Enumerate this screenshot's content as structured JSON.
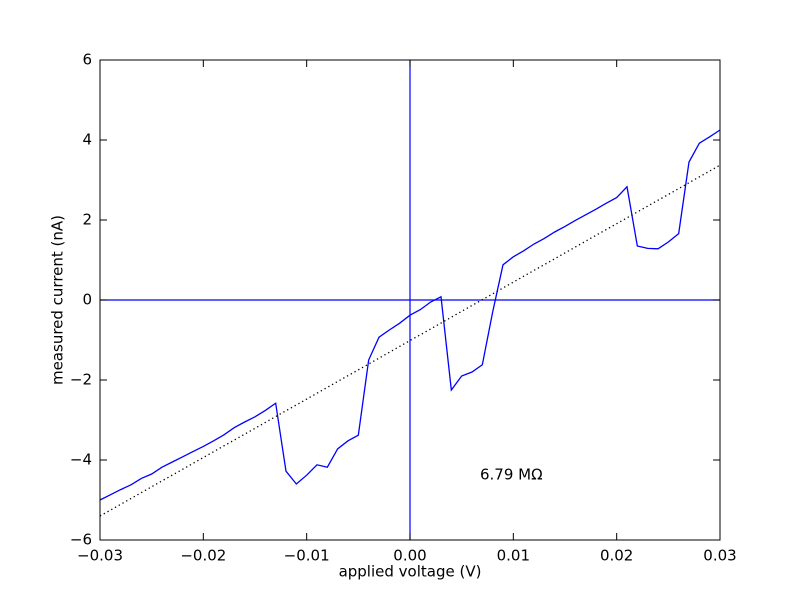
{
  "chart_data": {
    "type": "line",
    "xlabel": "applied voltage (V)",
    "ylabel": "measured current (nA)",
    "annotation": "6.79 MΩ",
    "xlim": [
      -0.03,
      0.03
    ],
    "ylim": [
      -6,
      6
    ],
    "xticks": [
      {
        "value": -0.03,
        "label": "−0.03"
      },
      {
        "value": -0.02,
        "label": "−0.02"
      },
      {
        "value": -0.01,
        "label": "−0.01"
      },
      {
        "value": 0,
        "label": "0.00"
      },
      0.01,
      0.02,
      0.03
    ],
    "yticks": [
      {
        "value": -6,
        "label": "−6"
      },
      {
        "value": -4,
        "label": "−4"
      },
      {
        "value": -2,
        "label": "−2"
      },
      0,
      2,
      4,
      6
    ],
    "grid": false,
    "hlines": [
      0
    ],
    "vlines": [
      0
    ],
    "reference_color": "#0000ff",
    "series": [
      {
        "color": "#0000ff",
        "style": "solid",
        "x": [
          -0.03,
          -0.029,
          -0.028,
          -0.027,
          -0.026,
          -0.025,
          -0.024,
          -0.023,
          -0.022,
          -0.021,
          -0.02,
          -0.019,
          -0.018,
          -0.017,
          -0.016,
          -0.015,
          -0.014,
          -0.013,
          -0.012,
          -0.011,
          -0.01,
          -0.009,
          -0.008,
          -0.007,
          -0.006,
          -0.005,
          -0.004,
          -0.003,
          -0.002,
          -0.001,
          0,
          0.001,
          0.002,
          0.003,
          0.004,
          0.005,
          0.006,
          0.007,
          0.008,
          0.009,
          0.01,
          0.011,
          0.012,
          0.013,
          0.014,
          0.015,
          0.016,
          0.017,
          0.018,
          0.019,
          0.02,
          0.021,
          0.022,
          0.023,
          0.024,
          0.025,
          0.026,
          0.027,
          0.028,
          0.029,
          0.03
        ],
        "values": [
          -5.0,
          -4.87,
          -4.74,
          -4.62,
          -4.46,
          -4.35,
          -4.18,
          -4.05,
          -3.92,
          -3.79,
          -3.66,
          -3.52,
          -3.37,
          -3.19,
          -3.05,
          -2.92,
          -2.76,
          -2.58,
          -4.28,
          -4.6,
          -4.38,
          -4.12,
          -4.18,
          -3.72,
          -3.52,
          -3.38,
          -1.5,
          -0.93,
          -0.75,
          -0.58,
          -0.38,
          -0.24,
          -0.05,
          0.08,
          -2.25,
          -1.9,
          -1.8,
          -1.62,
          -0.3,
          0.88,
          1.08,
          1.23,
          1.4,
          1.54,
          1.7,
          1.84,
          1.99,
          2.13,
          2.27,
          2.42,
          2.56,
          2.83,
          1.35,
          1.29,
          1.28,
          1.45,
          1.66,
          3.45,
          3.92,
          4.08,
          4.25
        ]
      },
      {
        "color": "#000000",
        "style": "dotted",
        "x": [
          -0.03,
          0.03
        ],
        "values": [
          -5.4,
          3.37
        ]
      }
    ]
  }
}
